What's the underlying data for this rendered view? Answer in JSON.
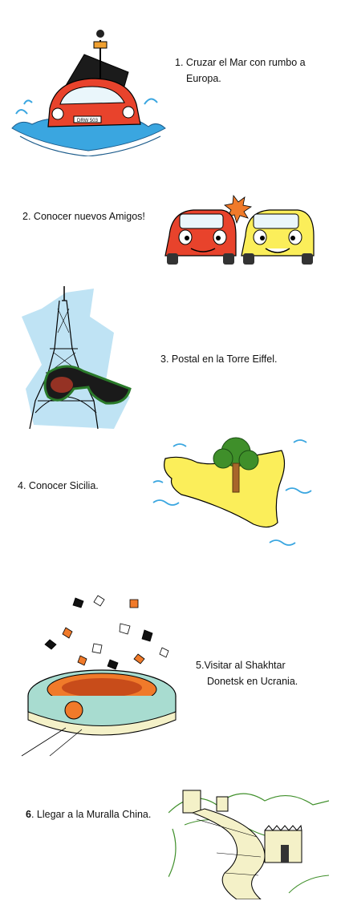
{
  "items": [
    {
      "number": "1.",
      "text": "Cruzar el Mar con rumbo a",
      "text2": "Europa."
    },
    {
      "number": "2.",
      "text": "Conocer nuevos Amigos!"
    },
    {
      "number": "3.",
      "text": "Postal en la Torre Eiffel."
    },
    {
      "number": "4.",
      "text": "Conocer Sicilia."
    },
    {
      "number": "5.",
      "text": "Visitar al Shakhtar",
      "text2": "Donetsk en Ucrania."
    },
    {
      "number": "6",
      "suffix": ".",
      "text": "Llegar a la Muralla China."
    }
  ],
  "plate_text": "DRW 503",
  "colors": {
    "red": "#e8432c",
    "yellow": "#fbee5a",
    "water": "#3aa6e0",
    "sky": "#bfe3f4",
    "green": "#3f8f2a",
    "orange": "#f07a2a",
    "stadium": "#a8dcd0"
  }
}
